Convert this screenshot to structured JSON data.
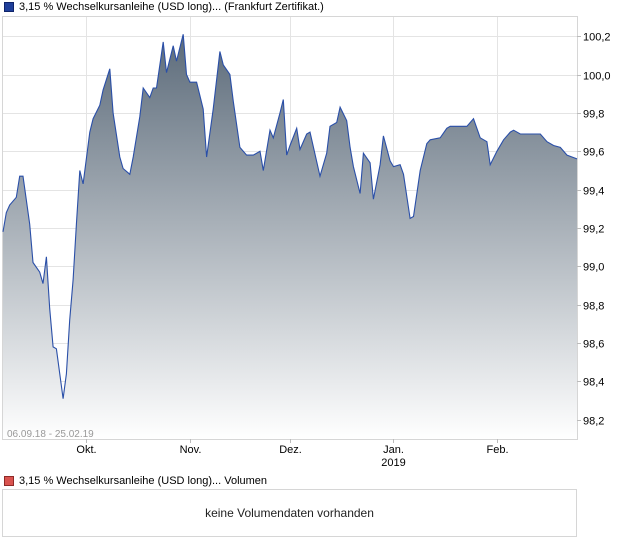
{
  "legend_price": "3,15 % Wechselkursanleihe (USD long)... (Frankfurt Zertifikat.)",
  "legend_volume": "3,15 % Wechselkursanleihe (USD long)... Volumen",
  "volume_message": "keine Volumendaten vorhanden",
  "colors": {
    "line": "#2a4fa8",
    "fill_top": "#5c6b7a",
    "fill_bottom": "#ffffff",
    "grid": "#e4e4e4"
  },
  "chart_data": {
    "type": "area",
    "title": "",
    "range_label": "06.09.18 - 25.02.19",
    "ylim": [
      98.1,
      100.3
    ],
    "yticks": [
      98.2,
      98.4,
      98.6,
      98.8,
      99.0,
      99.2,
      99.4,
      99.6,
      99.8,
      100.0,
      100.2
    ],
    "ytick_labels": [
      "98,2",
      "98,4",
      "98,6",
      "98,8",
      "99,0",
      "99,2",
      "99,4",
      "99,6",
      "99,8",
      "100,0",
      "100,2"
    ],
    "x_range": [
      "2018-09-06",
      "2019-02-25"
    ],
    "xticks": [
      {
        "date": "2018-10-01",
        "label": "Okt.",
        "sub": ""
      },
      {
        "date": "2018-11-01",
        "label": "Nov.",
        "sub": ""
      },
      {
        "date": "2018-12-01",
        "label": "Dez.",
        "sub": ""
      },
      {
        "date": "2019-01-01",
        "label": "Jan.",
        "sub": "2019"
      },
      {
        "date": "2019-02-01",
        "label": "Feb.",
        "sub": ""
      }
    ],
    "grid": true,
    "series": [
      {
        "points": [
          [
            "2018-09-06",
            99.18
          ],
          [
            "2018-09-07",
            99.28
          ],
          [
            "2018-09-08",
            99.32
          ],
          [
            "2018-09-10",
            99.36
          ],
          [
            "2018-09-11",
            99.47
          ],
          [
            "2018-09-12",
            99.47
          ],
          [
            "2018-09-14",
            99.22
          ],
          [
            "2018-09-15",
            99.02
          ],
          [
            "2018-09-17",
            98.97
          ],
          [
            "2018-09-18",
            98.91
          ],
          [
            "2018-09-19",
            99.05
          ],
          [
            "2018-09-20",
            98.78
          ],
          [
            "2018-09-21",
            98.58
          ],
          [
            "2018-09-22",
            98.57
          ],
          [
            "2018-09-24",
            98.31
          ],
          [
            "2018-09-25",
            98.44
          ],
          [
            "2018-09-26",
            98.72
          ],
          [
            "2018-09-27",
            98.93
          ],
          [
            "2018-09-28",
            99.22
          ],
          [
            "2018-09-29",
            99.5
          ],
          [
            "2018-09-30",
            99.43
          ],
          [
            "2018-10-02",
            99.7
          ],
          [
            "2018-10-03",
            99.77
          ],
          [
            "2018-10-05",
            99.84
          ],
          [
            "2018-10-06",
            99.92
          ],
          [
            "2018-10-08",
            100.03
          ],
          [
            "2018-10-09",
            99.8
          ],
          [
            "2018-10-11",
            99.57
          ],
          [
            "2018-10-12",
            99.51
          ],
          [
            "2018-10-14",
            99.48
          ],
          [
            "2018-10-15",
            99.57
          ],
          [
            "2018-10-17",
            99.78
          ],
          [
            "2018-10-18",
            99.93
          ],
          [
            "2018-10-20",
            99.88
          ],
          [
            "2018-10-21",
            99.93
          ],
          [
            "2018-10-22",
            99.93
          ],
          [
            "2018-10-24",
            100.17
          ],
          [
            "2018-10-25",
            100.01
          ],
          [
            "2018-10-27",
            100.15
          ],
          [
            "2018-10-28",
            100.07
          ],
          [
            "2018-10-30",
            100.21
          ],
          [
            "2018-10-31",
            100.0
          ],
          [
            "2018-11-01",
            99.96
          ],
          [
            "2018-11-03",
            99.96
          ],
          [
            "2018-11-05",
            99.82
          ],
          [
            "2018-11-06",
            99.57
          ],
          [
            "2018-11-08",
            99.82
          ],
          [
            "2018-11-10",
            100.12
          ],
          [
            "2018-11-11",
            100.05
          ],
          [
            "2018-11-13",
            100.0
          ],
          [
            "2018-11-14",
            99.86
          ],
          [
            "2018-11-16",
            99.62
          ],
          [
            "2018-11-18",
            99.58
          ],
          [
            "2018-11-20",
            99.58
          ],
          [
            "2018-11-22",
            99.6
          ],
          [
            "2018-11-23",
            99.5
          ],
          [
            "2018-11-25",
            99.71
          ],
          [
            "2018-11-26",
            99.67
          ],
          [
            "2018-11-28",
            99.8
          ],
          [
            "2018-11-29",
            99.87
          ],
          [
            "2018-11-30",
            99.58
          ],
          [
            "2018-12-01",
            99.63
          ],
          [
            "2018-12-03",
            99.72
          ],
          [
            "2018-12-04",
            99.61
          ],
          [
            "2018-12-06",
            99.69
          ],
          [
            "2018-12-07",
            99.7
          ],
          [
            "2018-12-10",
            99.47
          ],
          [
            "2018-12-12",
            99.59
          ],
          [
            "2018-12-13",
            99.73
          ],
          [
            "2018-12-15",
            99.75
          ],
          [
            "2018-12-16",
            99.83
          ],
          [
            "2018-12-18",
            99.76
          ],
          [
            "2018-12-19",
            99.62
          ],
          [
            "2018-12-20",
            99.52
          ],
          [
            "2018-12-22",
            99.38
          ],
          [
            "2018-12-23",
            99.59
          ],
          [
            "2018-12-25",
            99.54
          ],
          [
            "2018-12-26",
            99.35
          ],
          [
            "2018-12-28",
            99.53
          ],
          [
            "2018-12-29",
            99.68
          ],
          [
            "2018-12-31",
            99.55
          ],
          [
            "2019-01-01",
            99.52
          ],
          [
            "2019-01-03",
            99.53
          ],
          [
            "2019-01-04",
            99.48
          ],
          [
            "2019-01-06",
            99.25
          ],
          [
            "2019-01-07",
            99.26
          ],
          [
            "2019-01-09",
            99.5
          ],
          [
            "2019-01-11",
            99.64
          ],
          [
            "2019-01-12",
            99.66
          ],
          [
            "2019-01-15",
            99.67
          ],
          [
            "2019-01-17",
            99.72
          ],
          [
            "2019-01-18",
            99.73
          ],
          [
            "2019-01-22",
            99.73
          ],
          [
            "2019-01-23",
            99.73
          ],
          [
            "2019-01-25",
            99.77
          ],
          [
            "2019-01-27",
            99.67
          ],
          [
            "2019-01-29",
            99.65
          ],
          [
            "2019-01-30",
            99.53
          ],
          [
            "2019-02-01",
            99.6
          ],
          [
            "2019-02-03",
            99.66
          ],
          [
            "2019-02-05",
            99.7
          ],
          [
            "2019-02-06",
            99.71
          ],
          [
            "2019-02-08",
            99.69
          ],
          [
            "2019-02-14",
            99.69
          ],
          [
            "2019-02-16",
            99.65
          ],
          [
            "2019-02-18",
            99.63
          ],
          [
            "2019-02-20",
            99.62
          ],
          [
            "2019-02-22",
            99.58
          ],
          [
            "2019-02-25",
            99.56
          ]
        ]
      }
    ]
  }
}
